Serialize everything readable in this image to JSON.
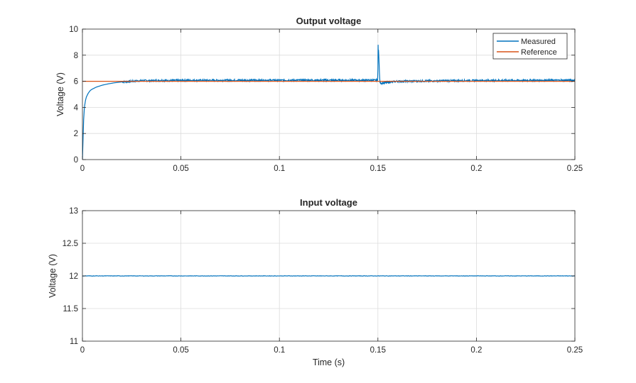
{
  "chart_data": [
    {
      "type": "line",
      "title": "Output voltage",
      "xlabel": "",
      "ylabel": "Voltage (V)",
      "xlim": [
        0,
        0.25
      ],
      "ylim": [
        0,
        10
      ],
      "xticks": [
        0,
        0.05,
        0.1,
        0.15,
        0.2,
        0.25
      ],
      "xtick_labels": [
        "0",
        "0.05",
        "0.1",
        "0.15",
        "0.2",
        "0.25"
      ],
      "yticks": [
        0,
        2,
        4,
        6,
        8,
        10
      ],
      "ytick_labels": [
        "0",
        "2",
        "4",
        "6",
        "8",
        "10"
      ],
      "grid": true,
      "legend": "top-right",
      "series": [
        {
          "name": "Measured",
          "color": "#0072BD",
          "x": [
            0,
            0.0003,
            0.0006,
            0.001,
            0.0015,
            0.002,
            0.003,
            0.004,
            0.005,
            0.007,
            0.01,
            0.013,
            0.016,
            0.02,
            0.025,
            0.03,
            0.05,
            0.1,
            0.1499,
            0.1502,
            0.1507,
            0.151,
            0.152,
            0.155,
            0.16,
            0.2,
            0.25
          ],
          "y": [
            0,
            1.5,
            3.0,
            4.0,
            4.5,
            4.8,
            5.1,
            5.3,
            5.4,
            5.55,
            5.7,
            5.8,
            5.88,
            5.95,
            6.0,
            6.05,
            6.07,
            6.08,
            6.08,
            8.8,
            7.0,
            5.9,
            5.85,
            5.92,
            6.0,
            6.06,
            6.08
          ]
        },
        {
          "name": "Reference",
          "color": "#D95319",
          "x": [
            0,
            0.25
          ],
          "y": [
            6,
            6
          ]
        }
      ]
    },
    {
      "type": "line",
      "title": "Input voltage",
      "xlabel": "Time (s)",
      "ylabel": "Voltage (V)",
      "xlim": [
        0,
        0.25
      ],
      "ylim": [
        11,
        13
      ],
      "xticks": [
        0,
        0.05,
        0.1,
        0.15,
        0.2,
        0.25
      ],
      "xtick_labels": [
        "0",
        "0.05",
        "0.1",
        "0.15",
        "0.2",
        "0.25"
      ],
      "yticks": [
        11,
        11.5,
        12,
        12.5,
        13
      ],
      "ytick_labels": [
        "11",
        "11.5",
        "12",
        "12.5",
        "13"
      ],
      "grid": true,
      "series": [
        {
          "color": "#0072BD",
          "x": [
            0,
            0.25
          ],
          "y": [
            12,
            12
          ]
        }
      ]
    }
  ]
}
